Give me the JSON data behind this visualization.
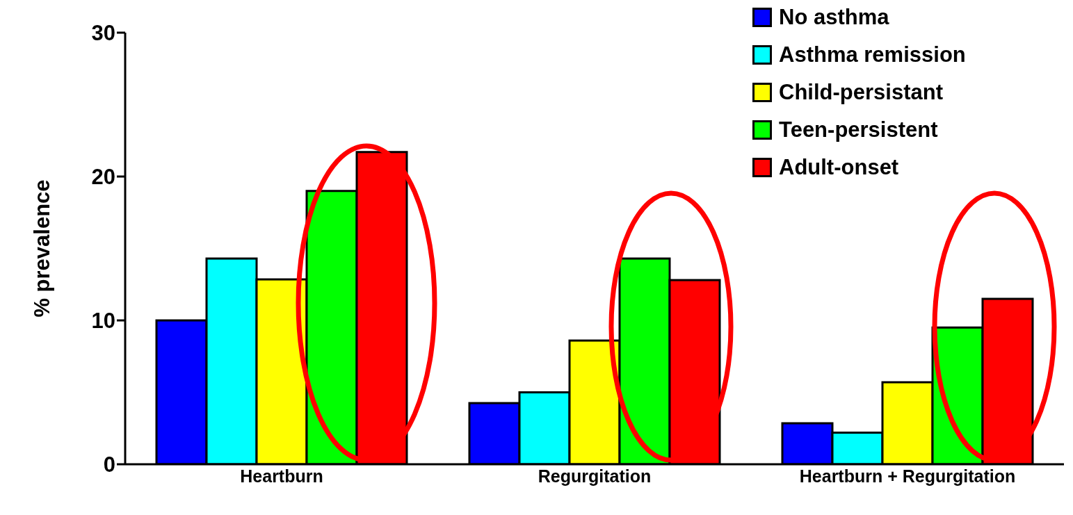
{
  "chart_data": {
    "type": "bar",
    "ylabel": "% prevalence",
    "categories": [
      "Heartburn",
      "Regurgitation",
      "Heartburn + Regurgitation"
    ],
    "series": [
      {
        "name": "No asthma",
        "color": "#0000ff",
        "values": [
          10.0,
          4.25,
          2.85
        ]
      },
      {
        "name": "Asthma remission",
        "color": "#00ffff",
        "values": [
          14.3,
          5.0,
          2.2
        ]
      },
      {
        "name": "Child-persistant",
        "color": "#ffff00",
        "values": [
          12.85,
          8.6,
          5.7
        ]
      },
      {
        "name": "Teen-persistent",
        "color": "#00ff00",
        "values": [
          19.0,
          14.3,
          9.5
        ]
      },
      {
        "name": "Adult-onset",
        "color": "#ff0000",
        "values": [
          21.7,
          12.8,
          11.5
        ]
      }
    ],
    "ylim": [
      0,
      30
    ],
    "yticks": [
      0,
      10,
      20,
      30
    ],
    "grid": false,
    "legend": "top right"
  }
}
